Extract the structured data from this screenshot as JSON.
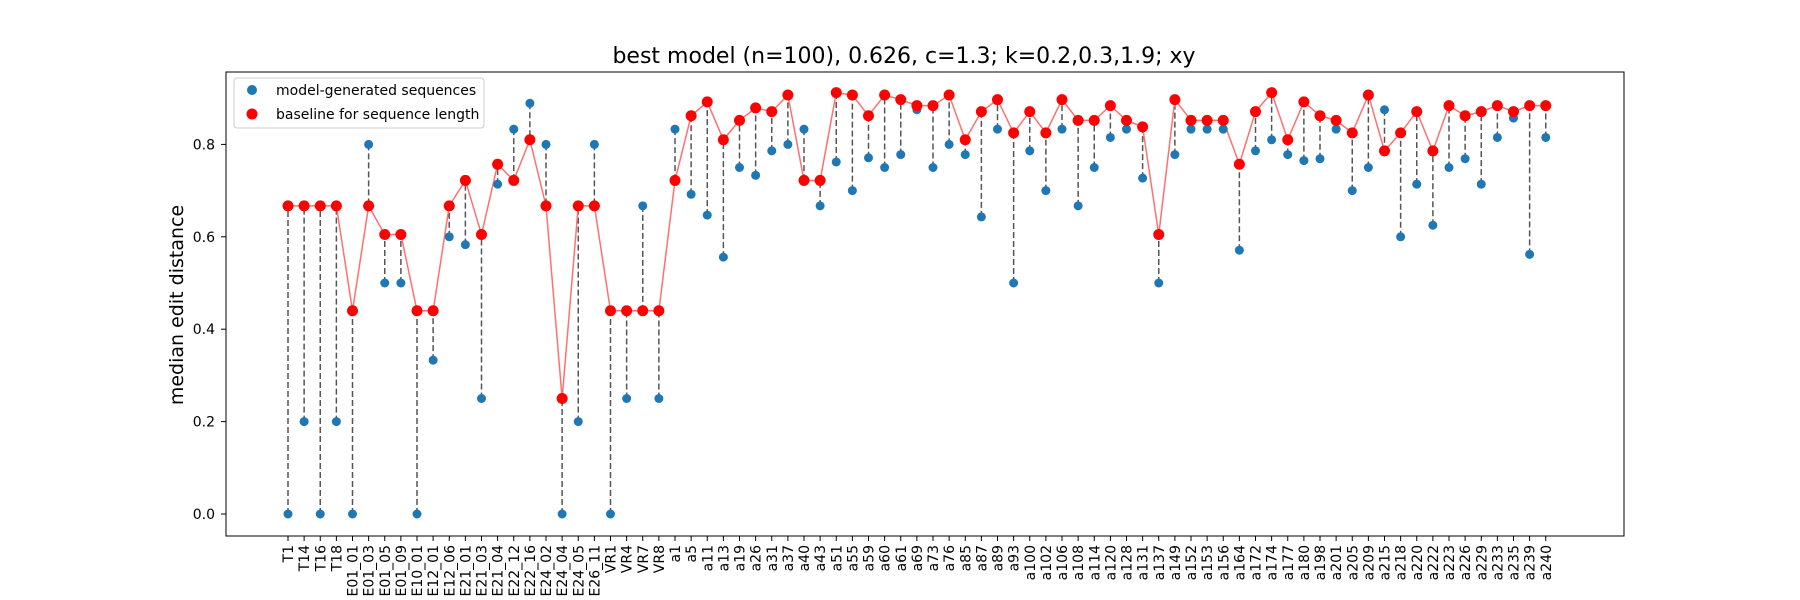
{
  "chart_data": {
    "type": "scatter",
    "title": "best model (n=100), 0.626, c=1.3; k=0.2,0.3,1.9; xy",
    "xlabel": "",
    "ylabel": "median edit distance",
    "ylim": [
      -0.05,
      0.96
    ],
    "yticks": [
      "0.0",
      "0.2",
      "0.4",
      "0.6",
      "0.8"
    ],
    "legend_position": "top-left",
    "grid": false,
    "colors": {
      "model": "#1f77b4",
      "baseline": "#ff0000",
      "baseline_line": "#ff7070",
      "connector": "#555555"
    },
    "categories": [
      "T1",
      "T14",
      "T16",
      "T18",
      "E01_01",
      "E01_03",
      "E01_05",
      "E01_09",
      "E10_01",
      "E12_01",
      "E12_06",
      "E21_01",
      "E21_03",
      "E21_04",
      "E22_12",
      "E22_16",
      "E24_02",
      "E24_04",
      "E24_05",
      "E26_11",
      "VR1",
      "VR4",
      "VR7",
      "VR8",
      "a1",
      "a5",
      "a11",
      "a13",
      "a19",
      "a26",
      "a31",
      "a37",
      "a40",
      "a43",
      "a51",
      "a55",
      "a59",
      "a60",
      "a61",
      "a69",
      "a73",
      "a76",
      "a85",
      "a87",
      "a89",
      "a93",
      "a100",
      "a102",
      "a106",
      "a108",
      "a114",
      "a120",
      "a128",
      "a131",
      "a137",
      "a149",
      "a152",
      "a153",
      "a156",
      "a164",
      "a172",
      "a174",
      "a177",
      "a180",
      "a198",
      "a201",
      "a205",
      "a209",
      "a215",
      "a218",
      "a220",
      "a222",
      "a223",
      "a226",
      "a229",
      "a233",
      "a235",
      "a239",
      "a240"
    ],
    "series": [
      {
        "name": "model-generated sequences",
        "values": [
          0.0,
          0.2,
          0.0,
          0.2,
          0.0,
          0.8,
          0.5,
          0.5,
          0.0,
          0.333,
          0.6,
          0.583,
          0.25,
          0.714,
          0.833,
          0.889,
          0.8,
          0.0,
          0.2,
          0.8,
          0.0,
          0.25,
          0.667,
          0.25,
          0.833,
          0.692,
          0.647,
          0.556,
          0.75,
          0.733,
          0.786,
          0.8,
          0.833,
          0.667,
          0.762,
          0.7,
          0.771,
          0.75,
          0.778,
          0.875,
          0.75,
          0.8,
          0.778,
          0.643,
          0.833,
          0.5,
          0.786,
          0.7,
          0.833,
          0.667,
          0.75,
          0.815,
          0.833,
          0.727,
          0.5,
          0.778,
          0.833,
          0.833,
          0.833,
          0.571,
          0.786,
          0.81,
          0.778,
          0.765,
          0.769,
          0.833,
          0.7,
          0.75,
          0.875,
          0.6,
          0.714,
          0.625,
          0.75,
          0.769,
          0.714,
          0.815,
          0.857,
          0.562,
          0.815
        ]
      },
      {
        "name": "baseline for sequence length",
        "values": [
          0.667,
          0.667,
          0.667,
          0.667,
          0.44,
          0.667,
          0.605,
          0.605,
          0.44,
          0.44,
          0.667,
          0.722,
          0.605,
          0.757,
          0.722,
          0.81,
          0.667,
          0.25,
          0.667,
          0.667,
          0.44,
          0.44,
          0.44,
          0.44,
          0.722,
          0.862,
          0.892,
          0.81,
          0.852,
          0.879,
          0.871,
          0.907,
          0.722,
          0.722,
          0.912,
          0.907,
          0.862,
          0.907,
          0.897,
          0.884,
          0.884,
          0.907,
          0.81,
          0.871,
          0.897,
          0.825,
          0.871,
          0.825,
          0.897,
          0.852,
          0.852,
          0.884,
          0.852,
          0.838,
          0.605,
          0.897,
          0.852,
          0.852,
          0.852,
          0.757,
          0.871,
          0.912,
          0.81,
          0.892,
          0.862,
          0.852,
          0.825,
          0.907,
          0.786,
          0.825,
          0.871,
          0.786,
          0.884,
          0.862,
          0.871,
          0.884,
          0.871,
          0.884,
          0.884
        ]
      }
    ]
  }
}
